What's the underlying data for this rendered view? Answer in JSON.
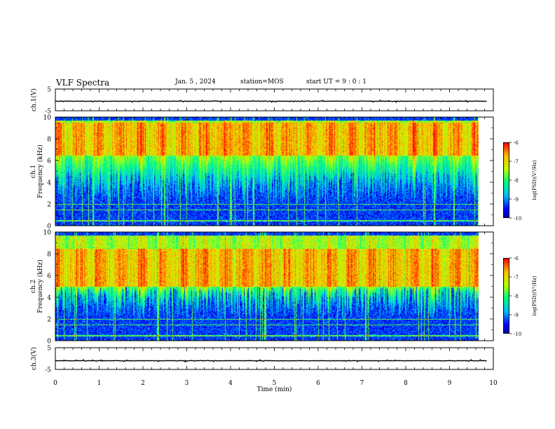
{
  "header": {
    "title": "VLF Spectra",
    "date": "Jan. 5 , 2024",
    "station": "station=MOS",
    "start": "start UT =  9 : 0 : 1"
  },
  "chart_data": [
    {
      "type": "line",
      "panel": "ch1-voltage",
      "ylabel": "ch.1(V)",
      "ylim": [
        -5,
        5
      ],
      "yticks": [
        "5",
        "-5"
      ],
      "level": -0.6
    },
    {
      "type": "heatmap",
      "panel": "ch1-spectrogram",
      "ylabel": "ch.1\nFrequency (kHz)",
      "ylabel_line1": "ch.1",
      "ylabel_line2": "Frequency (kHz)",
      "xlim": [
        0,
        10
      ],
      "ylim": [
        0,
        10
      ],
      "data_xmax": 9.85,
      "yticks": [
        "0",
        "2",
        "4",
        "6",
        "8",
        "10"
      ],
      "intense_band_khz": [
        6.5,
        9.5
      ],
      "colorbar": {
        "label": "log(PSD)(V²/Hz)",
        "range": [
          -10,
          -6
        ],
        "ticks": [
          "-6",
          "-7",
          "-8",
          "-9",
          "-10"
        ]
      }
    },
    {
      "type": "heatmap",
      "panel": "ch2-spectrogram",
      "ylabel": "ch.2\nFrequency (kHz)",
      "ylabel_line1": "ch.2",
      "ylabel_line2": "Frequency (kHz)",
      "xlim": [
        0,
        10
      ],
      "ylim": [
        0,
        10
      ],
      "data_xmax": 9.85,
      "yticks": [
        "0",
        "2",
        "4",
        "6",
        "8",
        "10"
      ],
      "intense_band_khz": [
        5.0,
        8.5
      ],
      "colorbar": {
        "label": "log(PSD)(V²/Hz)",
        "range": [
          -10,
          -6
        ],
        "ticks": [
          "-6",
          "-7",
          "-8",
          "-9",
          "-10"
        ]
      }
    },
    {
      "type": "line",
      "panel": "ch3-voltage",
      "ylabel": "ch.3(V)",
      "ylim": [
        -5,
        5
      ],
      "yticks": [
        "5",
        "-5"
      ],
      "level": -1.0
    }
  ],
  "xaxis": {
    "label": "Time (min)",
    "xlim": [
      0,
      10
    ],
    "ticks": [
      "0",
      "1",
      "2",
      "3",
      "4",
      "5",
      "6",
      "7",
      "8",
      "9",
      "10"
    ]
  },
  "colors": {
    "colormap": [
      "#00007f",
      "#0000ff",
      "#00bfff",
      "#00ff7f",
      "#bfff00",
      "#ffbf00",
      "#ff0000",
      "#ffffff"
    ]
  }
}
